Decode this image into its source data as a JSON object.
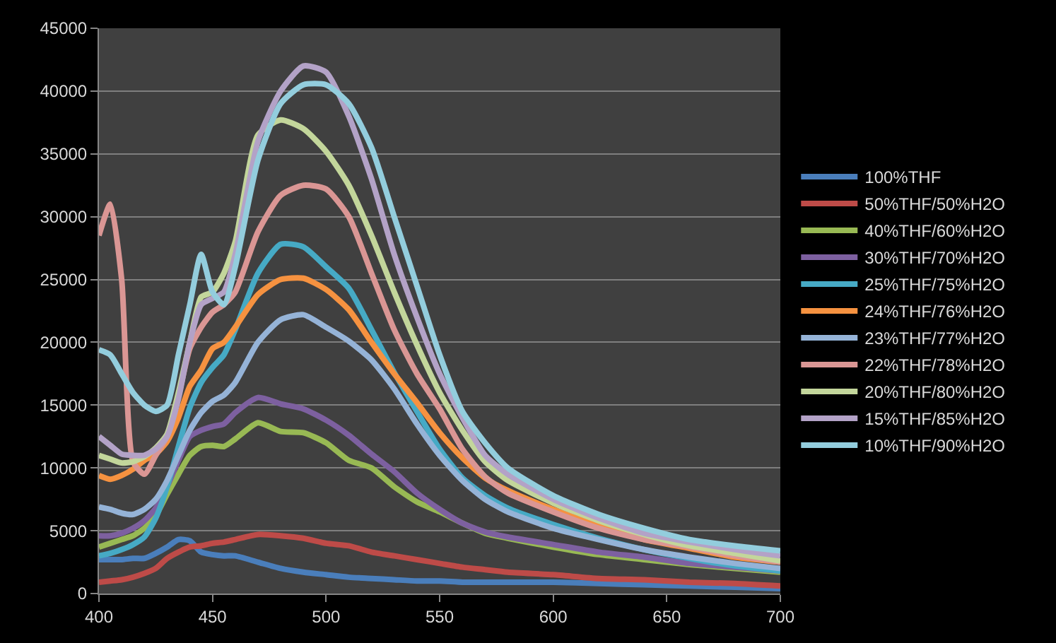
{
  "chart_data": {
    "type": "line",
    "x": [
      400,
      405,
      410,
      415,
      420,
      425,
      430,
      435,
      440,
      445,
      450,
      455,
      460,
      470,
      480,
      490,
      500,
      510,
      520,
      530,
      540,
      550,
      560,
      570,
      580,
      600,
      620,
      640,
      660,
      680,
      700
    ],
    "xlim": [
      400,
      700
    ],
    "xticks": [
      400,
      450,
      500,
      550,
      600,
      650,
      700
    ],
    "ylim": [
      0,
      45000
    ],
    "yticks": [
      0,
      5000,
      10000,
      15000,
      20000,
      25000,
      30000,
      35000,
      40000,
      45000
    ],
    "grid": "y",
    "legend": "right",
    "marker": "none",
    "line_style": "solid",
    "series": [
      {
        "name": "100%THF",
        "color": "#4a7ebb",
        "values": [
          2700,
          2700,
          2700,
          2800,
          2800,
          3200,
          3700,
          4300,
          4200,
          3300,
          3100,
          3000,
          3000,
          2500,
          2000,
          1700,
          1500,
          1300,
          1200,
          1100,
          1000,
          1000,
          900,
          900,
          900,
          900,
          800,
          700,
          600,
          500,
          400
        ]
      },
      {
        "name": "50%THF/50%H2O",
        "color": "#be4b48",
        "values": [
          900,
          1000,
          1100,
          1300,
          1600,
          2000,
          2800,
          3300,
          3700,
          3800,
          4000,
          4100,
          4300,
          4700,
          4600,
          4400,
          4000,
          3800,
          3300,
          3000,
          2700,
          2400,
          2100,
          1900,
          1700,
          1500,
          1200,
          1100,
          900,
          800,
          600
        ]
      },
      {
        "name": "40%THF/60%H2O",
        "color": "#98b954",
        "values": [
          3700,
          4000,
          4300,
          4600,
          5200,
          6200,
          7900,
          9500,
          11000,
          11700,
          11800,
          11700,
          12300,
          13600,
          12900,
          12800,
          12000,
          10600,
          10000,
          8500,
          7300,
          6500,
          5600,
          4800,
          4400,
          3700,
          3100,
          2700,
          2300,
          2000,
          1700
        ]
      },
      {
        "name": "30%THF/70%H2O",
        "color": "#7d60a0",
        "values": [
          4600,
          4600,
          4800,
          5200,
          5800,
          6800,
          8500,
          10600,
          12500,
          13000,
          13300,
          13500,
          14400,
          15600,
          15100,
          14700,
          13800,
          12600,
          11100,
          9700,
          8000,
          6700,
          5600,
          4900,
          4500,
          3900,
          3300,
          2900,
          2400,
          2100,
          1800
        ]
      },
      {
        "name": "25%THF/75%H2O",
        "color": "#46aac5",
        "values": [
          3000,
          3200,
          3500,
          3900,
          4500,
          6000,
          8500,
          11700,
          14800,
          16800,
          18000,
          19000,
          21000,
          25500,
          27800,
          27600,
          26000,
          24300,
          21000,
          17600,
          14500,
          11500,
          9200,
          7800,
          6800,
          5500,
          4400,
          3500,
          2800,
          2200,
          1800
        ]
      },
      {
        "name": "24%THF/76%H2O",
        "color": "#f69240",
        "values": [
          9400,
          9100,
          9400,
          9900,
          10600,
          11100,
          12100,
          14000,
          16500,
          17800,
          19500,
          20000,
          21200,
          23800,
          25000,
          25100,
          24200,
          22600,
          20000,
          17500,
          15200,
          12800,
          10800,
          9200,
          8200,
          6700,
          5400,
          4300,
          3600,
          2900,
          2500
        ]
      },
      {
        "name": "23%THF/77%H2O",
        "color": "#95b3d7",
        "values": [
          6900,
          6700,
          6400,
          6300,
          6700,
          7500,
          9000,
          11000,
          13000,
          14400,
          15300,
          15800,
          16800,
          20000,
          21800,
          22200,
          21200,
          20100,
          18600,
          16300,
          13500,
          11000,
          9000,
          7500,
          6500,
          5200,
          4300,
          3500,
          2900,
          2400,
          2000
        ]
      },
      {
        "name": "22%THF/78%H2O",
        "color": "#da9694",
        "values": [
          28500,
          31000,
          25000,
          10500,
          9500,
          11000,
          12500,
          15700,
          19500,
          21200,
          22400,
          23000,
          24000,
          28800,
          31700,
          32500,
          32200,
          30000,
          25500,
          21000,
          17500,
          14700,
          11500,
          9300,
          8000,
          6500,
          5200,
          4300,
          3700,
          3000,
          2500
        ]
      },
      {
        "name": "20%THF/80%H2O",
        "color": "#c3d69b",
        "values": [
          11000,
          10700,
          10400,
          10500,
          10900,
          11600,
          12700,
          16000,
          20000,
          23600,
          24000,
          25500,
          28000,
          36500,
          37700,
          37000,
          35200,
          32500,
          28500,
          24000,
          19800,
          16000,
          13000,
          10500,
          9000,
          7200,
          5800,
          4700,
          3800,
          3200,
          2600
        ]
      },
      {
        "name": "15%THF/85%H2O",
        "color": "#b3a2c7",
        "values": [
          12500,
          11800,
          11100,
          11000,
          11000,
          11500,
          12500,
          15500,
          20000,
          23000,
          23500,
          24000,
          27000,
          36000,
          40000,
          42000,
          41500,
          38000,
          33000,
          27000,
          22000,
          17500,
          14000,
          11000,
          9500,
          7500,
          6000,
          4800,
          4100,
          3500,
          3000
        ]
      },
      {
        "name": "10%THF/90%H2O",
        "color": "#93cddd",
        "values": [
          19400,
          19000,
          17500,
          16000,
          15000,
          14500,
          15000,
          19000,
          23000,
          27000,
          24000,
          23000,
          26000,
          34500,
          39000,
          40500,
          40500,
          39000,
          35500,
          30000,
          24500,
          19000,
          14500,
          12000,
          10000,
          7800,
          6300,
          5200,
          4300,
          3800,
          3400
        ]
      }
    ]
  }
}
